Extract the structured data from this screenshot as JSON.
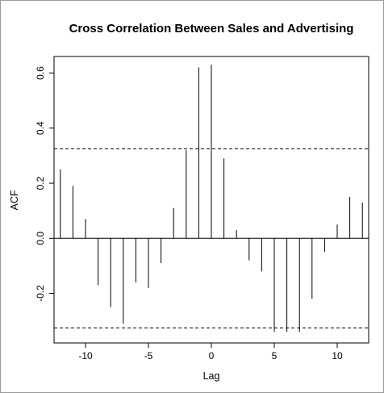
{
  "chart_data": {
    "type": "bar",
    "title": "Cross Correlation Between Sales and Advertising",
    "xlabel": "Lag",
    "ylabel": "ACF",
    "xlim": [
      -12.5,
      12.5
    ],
    "ylim": [
      -0.38,
      0.66
    ],
    "x_ticks": [
      -10,
      -5,
      0,
      5,
      10
    ],
    "x_tick_labels": [
      "-10",
      "-5",
      "0",
      "5",
      "10"
    ],
    "y_ticks": [
      -0.2,
      0.0,
      0.2,
      0.4,
      0.6
    ],
    "y_tick_labels": [
      "-0.2",
      "0.0",
      "0.2",
      "0.4",
      "0.6"
    ],
    "confidence_bound": 0.325,
    "grid": false,
    "lags": [
      -12,
      -11,
      -10,
      -9,
      -8,
      -7,
      -6,
      -5,
      -4,
      -3,
      -2,
      -1,
      0,
      1,
      2,
      3,
      4,
      5,
      6,
      7,
      8,
      9,
      10,
      11,
      12
    ],
    "values": [
      0.25,
      0.19,
      0.07,
      -0.17,
      -0.25,
      -0.31,
      -0.16,
      -0.18,
      -0.09,
      0.11,
      0.32,
      0.62,
      0.63,
      0.29,
      0.03,
      -0.08,
      -0.12,
      -0.34,
      -0.34,
      -0.34,
      -0.22,
      -0.05,
      0.05,
      0.15,
      0.13
    ]
  }
}
